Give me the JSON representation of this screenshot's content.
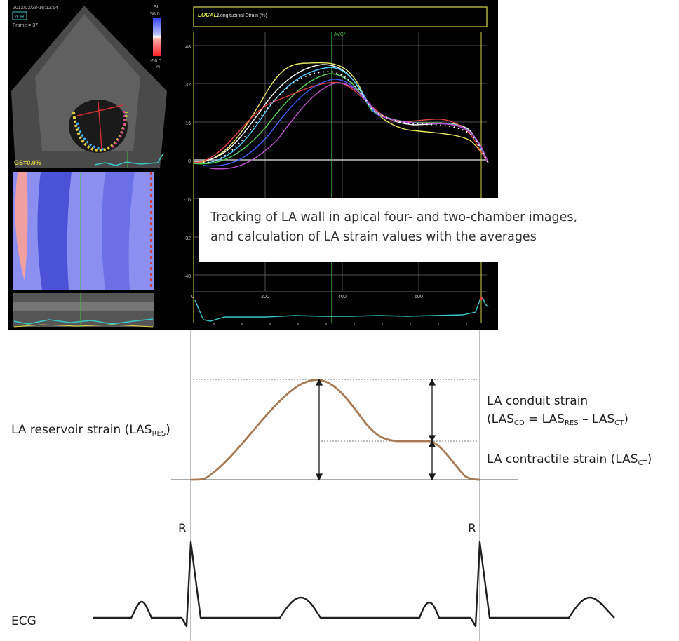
{
  "echo": {
    "timestamp": "2012/02/28-16:12:14",
    "view": "2CH",
    "frame": "Frame = 37",
    "colorbar_label": "SL",
    "colorbar_max": "56.0",
    "colorbar_min": "-56.0",
    "colorbar_unit": "%",
    "gs_label": "GS=0.0%"
  },
  "strain_plot": {
    "title_prefix": "LOCAL:",
    "title": "Longitudinal Strain (%)",
    "marker": "AVC*",
    "y_ticks": [
      "48",
      "32",
      "16",
      "0",
      "-16",
      "-32",
      "-48"
    ],
    "x_ticks": [
      "0",
      "200",
      "400",
      "600"
    ]
  },
  "caption": {
    "line1": "Tracking of LA wall in apical four- and two-chamber images,",
    "line2": "and calculation of LA strain values with the averages"
  },
  "labels": {
    "reservoir_main": "LA reservoir strain (LAS",
    "reservoir_sub": "RES",
    "reservoir_end": ")",
    "conduit_title": "LA conduit strain",
    "conduit_formula_a": "(LAS",
    "conduit_sub_cd": "CD",
    "conduit_formula_b": " = LAS",
    "conduit_sub_res": "RES",
    "conduit_formula_c": " – LAS",
    "conduit_sub_ct": "CT",
    "conduit_formula_d": ")",
    "contractile_main": "LA contractile strain (LAS",
    "contractile_sub": "CT",
    "contractile_end": ")",
    "r_peak_1": "R",
    "r_peak_2": "R",
    "ecg": "ECG"
  },
  "colors": {
    "strain_curve": "#a77a55",
    "ecg": "#231f20",
    "plot_background": "#000000",
    "plot_border": "#d4d44a",
    "avc_line": "#3fbf3f",
    "trace_ecg": "#38c8c8"
  }
}
